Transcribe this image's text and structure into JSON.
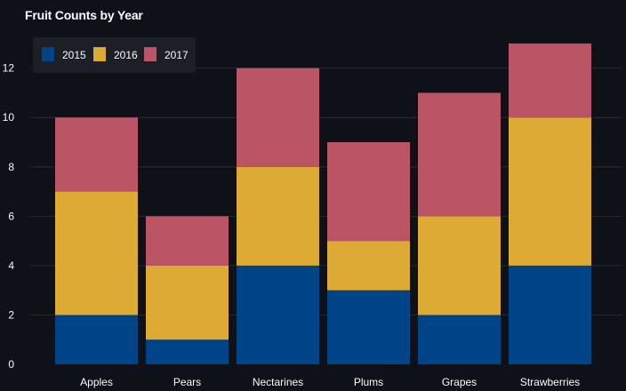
{
  "chart_data": {
    "type": "bar",
    "stacked": true,
    "title": "Fruit Counts by Year",
    "xlabel": "",
    "ylabel": "",
    "categories": [
      "Apples",
      "Pears",
      "Nectarines",
      "Plums",
      "Grapes",
      "Strawberries"
    ],
    "series": [
      {
        "name": "2015",
        "color": "#004488",
        "values": [
          2,
          1,
          4,
          3,
          2,
          4
        ]
      },
      {
        "name": "2016",
        "color": "#ddaa33",
        "values": [
          5,
          3,
          4,
          2,
          4,
          6
        ]
      },
      {
        "name": "2017",
        "color": "#bb5566",
        "values": [
          3,
          2,
          4,
          4,
          5,
          3
        ]
      }
    ],
    "ylim": [
      0,
      13.5
    ],
    "yticks": [
      0,
      2,
      4,
      6,
      8,
      10,
      12
    ],
    "grid": true,
    "legend_position": "top-left",
    "background": "#0e1117",
    "grid_color": "#262a33",
    "legend_background": "#1c1f26"
  }
}
